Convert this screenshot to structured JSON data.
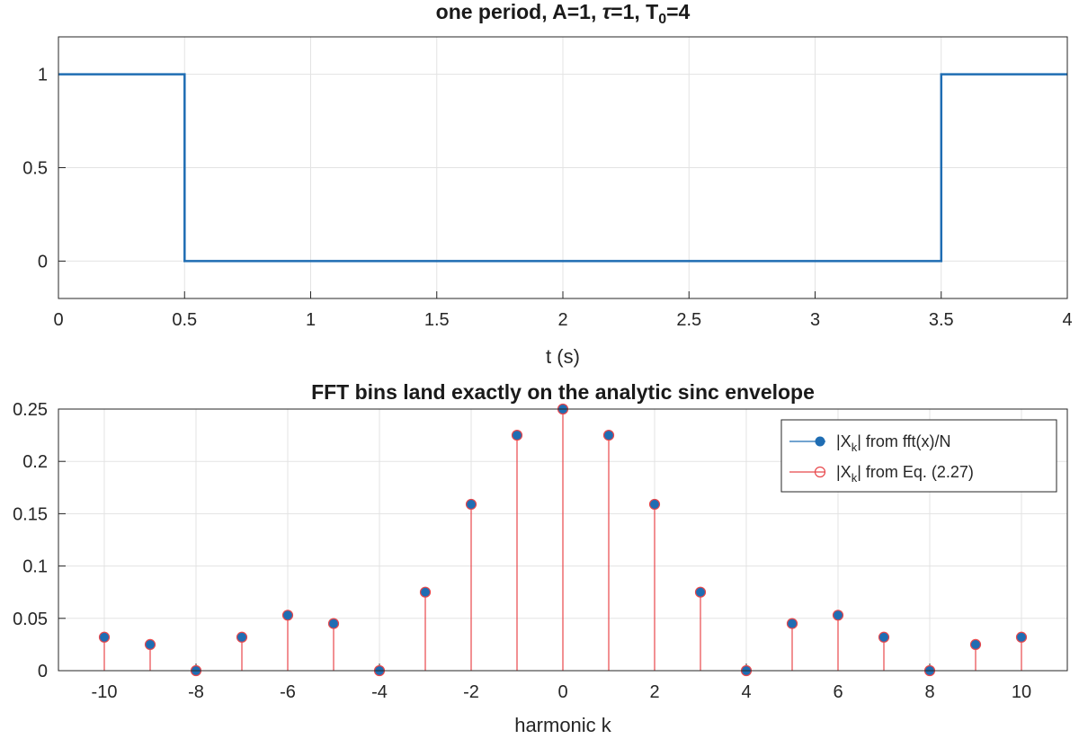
{
  "chart_data": [
    {
      "type": "line",
      "title_parts": [
        "one  period,  A=1,  ",
        "τ",
        "=1,  T",
        "0",
        "=4"
      ],
      "xlabel": "t (s)",
      "ylabel": "",
      "xlim": [
        0,
        4
      ],
      "ylim": [
        -0.2,
        1.2
      ],
      "grid": true,
      "xticks": [
        0,
        0.5,
        1,
        1.5,
        2,
        2.5,
        3,
        3.5,
        4
      ],
      "xtick_labels": [
        "0",
        "0.5",
        "1",
        "1.5",
        "2",
        "2.5",
        "3",
        "3.5",
        "4"
      ],
      "yticks": [
        0,
        0.5,
        1
      ],
      "ytick_labels": [
        "0",
        "0.5",
        "1"
      ],
      "color": "#1f6db3",
      "x": [
        0,
        0.5,
        0.5,
        3.5,
        3.5,
        4
      ],
      "y": [
        1,
        1,
        0,
        0,
        1,
        1
      ]
    },
    {
      "type": "stem",
      "title": "FFT bins land exactly on the analytic sinc envelope",
      "xlabel": "harmonic k",
      "ylabel": "",
      "xlim": [
        -11,
        11
      ],
      "ylim": [
        0,
        0.25
      ],
      "grid": true,
      "xticks": [
        -10,
        -8,
        -6,
        -4,
        -2,
        0,
        2,
        4,
        6,
        8,
        10
      ],
      "xtick_labels": [
        "-10",
        "-8",
        "-6",
        "-4",
        "-2",
        "0",
        "2",
        "4",
        "6",
        "8",
        "10"
      ],
      "yticks": [
        0,
        0.05,
        0.1,
        0.15,
        0.2,
        0.25
      ],
      "ytick_labels": [
        "0",
        "0.05",
        "0.1",
        "0.15",
        "0.2",
        "0.25"
      ],
      "legend_position": "top-right",
      "x": [
        -10,
        -9,
        -8,
        -7,
        -6,
        -5,
        -4,
        -3,
        -2,
        -1,
        0,
        1,
        2,
        3,
        4,
        5,
        6,
        7,
        8,
        9,
        10
      ],
      "series": [
        {
          "name_parts": [
            "|X",
            "k",
            "|  from  fft(x)/N"
          ],
          "color": "#1f6db3",
          "marker": "filled-circle",
          "values": [
            0.032,
            0.025,
            0.0,
            0.032,
            0.053,
            0.045,
            0.0,
            0.075,
            0.159,
            0.225,
            0.25,
            0.225,
            0.159,
            0.075,
            0.0,
            0.045,
            0.053,
            0.032,
            0.0,
            0.025,
            0.032
          ]
        },
        {
          "name_parts": [
            "|X",
            "k",
            "|  from  Eq.  (2.27)"
          ],
          "color": "#e8474b",
          "marker": "open-circle",
          "values": [
            0.032,
            0.025,
            0.0,
            0.032,
            0.053,
            0.045,
            0.0,
            0.075,
            0.159,
            0.225,
            0.25,
            0.225,
            0.159,
            0.075,
            0.0,
            0.045,
            0.053,
            0.032,
            0.0,
            0.025,
            0.032
          ]
        }
      ]
    }
  ]
}
